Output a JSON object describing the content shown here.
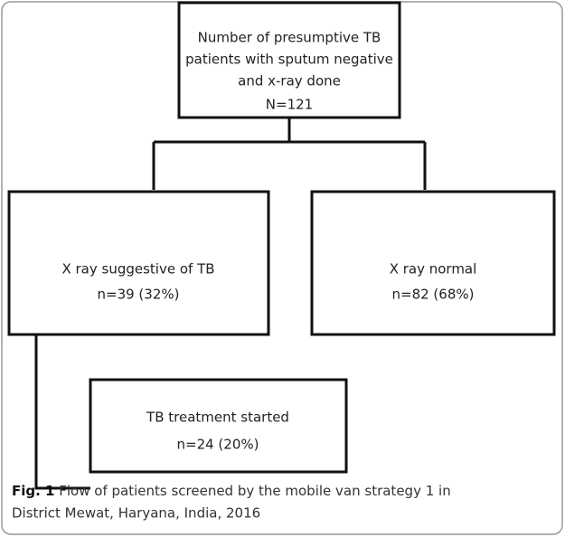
{
  "nodes": [
    {
      "lines": [
        "Number of presumptive TB",
        "patients with sputum negative",
        "and x-ray done"
      ],
      "count": "N=121"
    },
    {
      "lines": [
        "X ray suggestive of TB"
      ],
      "count": "n=39 (32%)"
    },
    {
      "lines": [
        "X ray normal"
      ],
      "count": "n=82 (68%)"
    },
    {
      "lines": [
        "TB treatment started"
      ],
      "count": "n=24 (20%)"
    }
  ],
  "caption": {
    "label": "Fig. 1",
    "lines": [
      "Flow of patients screened by the mobile van strategy 1 in",
      "District Mewat, Haryana, India, 2016"
    ]
  }
}
